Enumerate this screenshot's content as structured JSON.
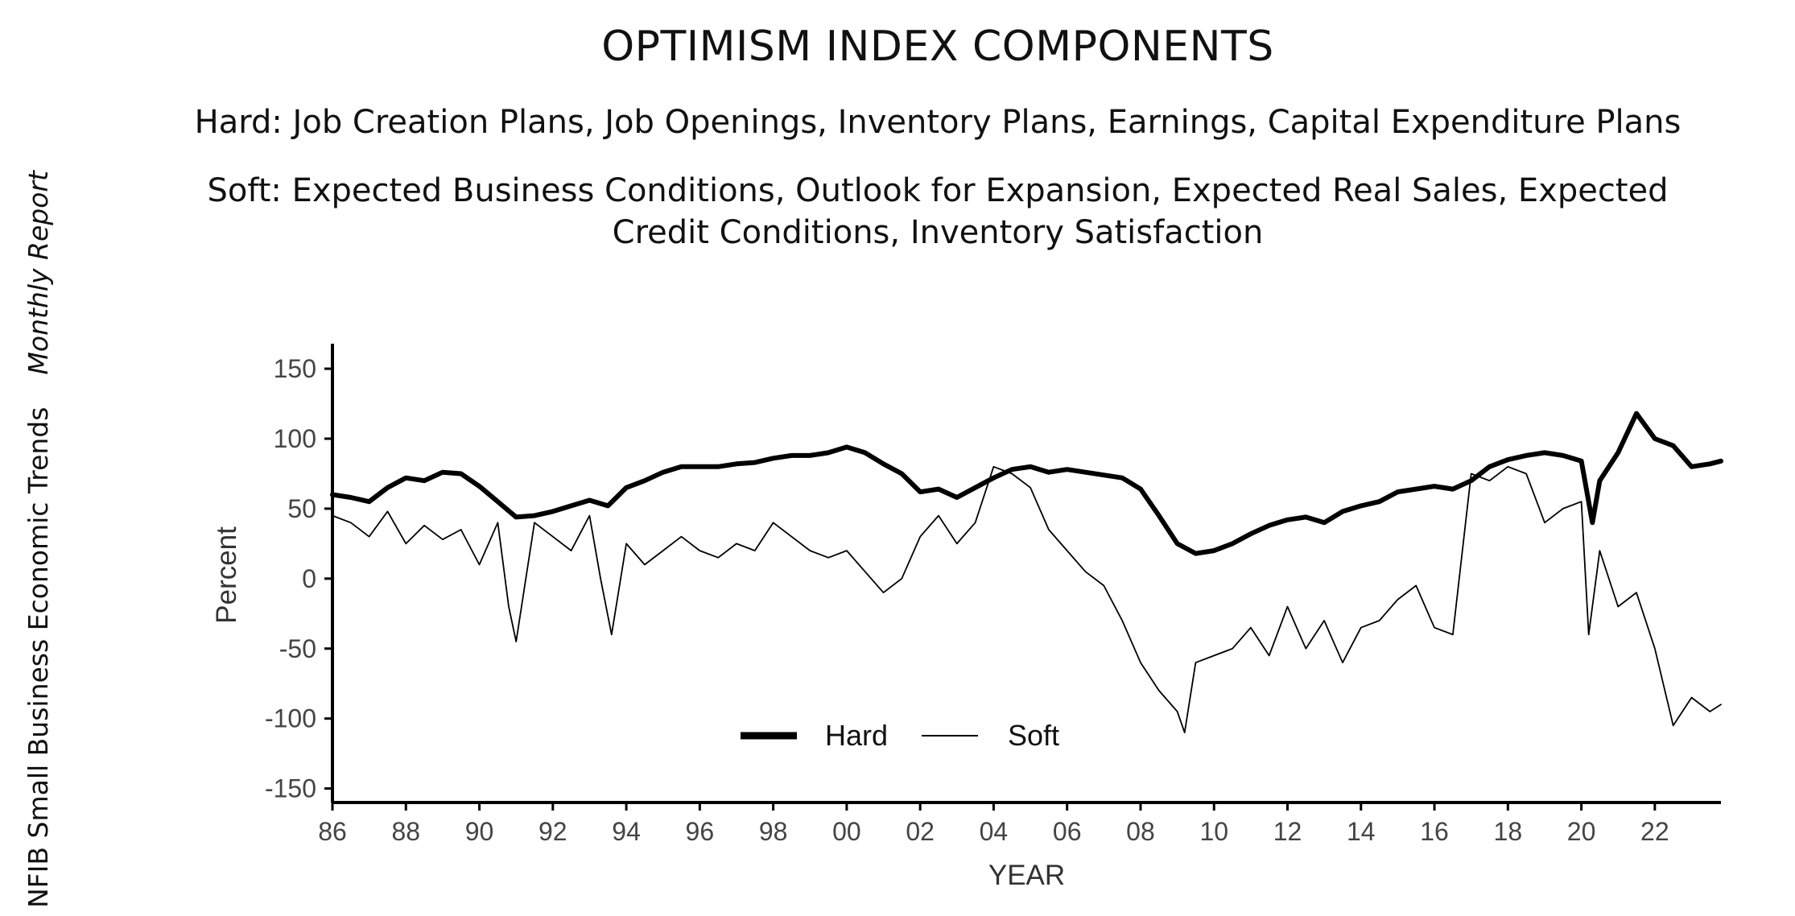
{
  "sidebar": {
    "publication": "NFIB Small Business Economic Trends",
    "report": "Monthly Report"
  },
  "header": {
    "title": "OPTIMISM INDEX COMPONENTS",
    "hard_line": "Hard: Job Creation Plans, Job Openings, Inventory Plans, Earnings, Capital Expenditure Plans",
    "soft_line_1": "Soft: Expected Business Conditions, Outlook for Expansion, Expected Real Sales, Expected",
    "soft_line_2": "Credit Conditions, Inventory Satisfaction"
  },
  "chart_data": {
    "type": "line",
    "xlabel": "YEAR",
    "ylabel": "Percent",
    "xlim": [
      1986,
      2023.8
    ],
    "ylim": [
      -160,
      165
    ],
    "x_ticks": [
      1986,
      1988,
      1990,
      1992,
      1994,
      1996,
      1998,
      2000,
      2002,
      2004,
      2006,
      2008,
      2010,
      2012,
      2014,
      2016,
      2018,
      2020,
      2022
    ],
    "x_tick_labels": [
      "86",
      "88",
      "90",
      "92",
      "94",
      "96",
      "98",
      "00",
      "02",
      "04",
      "06",
      "08",
      "10",
      "12",
      "14",
      "16",
      "18",
      "20",
      "22"
    ],
    "y_ticks": [
      150,
      100,
      50,
      0,
      -50,
      -100,
      -150
    ],
    "y_tick_labels": [
      "150",
      "100",
      "50",
      "0",
      "-50",
      "-100",
      "-150"
    ],
    "grid": false,
    "legend_position": "bottom-center",
    "series": [
      {
        "name": "Hard",
        "color": "#000000",
        "style": "thick",
        "x": [
          1986.0,
          1986.5,
          1987.0,
          1987.5,
          1988.0,
          1988.5,
          1989.0,
          1989.5,
          1990.0,
          1990.5,
          1991.0,
          1991.5,
          1992.0,
          1992.5,
          1993.0,
          1993.5,
          1994.0,
          1994.5,
          1995.0,
          1995.5,
          1996.0,
          1996.5,
          1997.0,
          1997.5,
          1998.0,
          1998.5,
          1999.0,
          1999.5,
          2000.0,
          2000.5,
          2001.0,
          2001.5,
          2002.0,
          2002.5,
          2003.0,
          2003.5,
          2004.0,
          2004.5,
          2005.0,
          2005.5,
          2006.0,
          2006.5,
          2007.0,
          2007.5,
          2008.0,
          2008.5,
          2009.0,
          2009.5,
          2010.0,
          2010.5,
          2011.0,
          2011.5,
          2012.0,
          2012.5,
          2013.0,
          2013.5,
          2014.0,
          2014.5,
          2015.0,
          2015.5,
          2016.0,
          2016.5,
          2017.0,
          2017.5,
          2018.0,
          2018.5,
          2019.0,
          2019.5,
          2020.0,
          2020.3,
          2020.5,
          2021.0,
          2021.5,
          2022.0,
          2022.5,
          2023.0,
          2023.5,
          2023.8
        ],
        "values": [
          60,
          58,
          55,
          65,
          72,
          70,
          76,
          75,
          66,
          55,
          44,
          45,
          48,
          52,
          56,
          52,
          65,
          70,
          76,
          80,
          80,
          80,
          82,
          83,
          86,
          88,
          88,
          90,
          94,
          90,
          82,
          75,
          62,
          64,
          58,
          65,
          72,
          78,
          80,
          76,
          78,
          76,
          74,
          72,
          64,
          45,
          25,
          18,
          20,
          25,
          32,
          38,
          42,
          44,
          40,
          48,
          52,
          55,
          62,
          64,
          66,
          64,
          70,
          80,
          85,
          88,
          90,
          88,
          84,
          40,
          70,
          90,
          118,
          100,
          95,
          80,
          82,
          84
        ]
      },
      {
        "name": "Soft",
        "color": "#000000",
        "style": "thin",
        "x": [
          1986.0,
          1986.5,
          1987.0,
          1987.5,
          1988.0,
          1988.5,
          1989.0,
          1989.5,
          1990.0,
          1990.5,
          1990.8,
          1991.0,
          1991.5,
          1992.0,
          1992.5,
          1993.0,
          1993.3,
          1993.6,
          1994.0,
          1994.5,
          1995.0,
          1995.5,
          1996.0,
          1996.5,
          1997.0,
          1997.5,
          1998.0,
          1998.5,
          1999.0,
          1999.5,
          2000.0,
          2000.5,
          2001.0,
          2001.5,
          2002.0,
          2002.5,
          2003.0,
          2003.5,
          2004.0,
          2004.5,
          2005.0,
          2005.5,
          2006.0,
          2006.5,
          2007.0,
          2007.5,
          2008.0,
          2008.5,
          2009.0,
          2009.2,
          2009.5,
          2010.0,
          2010.5,
          2011.0,
          2011.5,
          2012.0,
          2012.5,
          2013.0,
          2013.5,
          2014.0,
          2014.5,
          2015.0,
          2015.5,
          2016.0,
          2016.5,
          2017.0,
          2017.5,
          2018.0,
          2018.5,
          2019.0,
          2019.5,
          2020.0,
          2020.2,
          2020.5,
          2021.0,
          2021.5,
          2022.0,
          2022.5,
          2023.0,
          2023.5,
          2023.8
        ],
        "values": [
          45,
          40,
          30,
          48,
          25,
          38,
          28,
          35,
          10,
          40,
          -20,
          -45,
          40,
          30,
          20,
          45,
          0,
          -40,
          25,
          10,
          20,
          30,
          20,
          15,
          25,
          20,
          40,
          30,
          20,
          15,
          20,
          5,
          -10,
          0,
          30,
          45,
          25,
          40,
          80,
          75,
          65,
          35,
          20,
          5,
          -5,
          -30,
          -60,
          -80,
          -95,
          -110,
          -60,
          -55,
          -50,
          -35,
          -55,
          -20,
          -50,
          -30,
          -60,
          -35,
          -30,
          -15,
          -5,
          -35,
          -40,
          75,
          70,
          80,
          75,
          40,
          50,
          55,
          -40,
          20,
          -20,
          -10,
          -50,
          -105,
          -85,
          -95,
          -90
        ]
      }
    ]
  }
}
